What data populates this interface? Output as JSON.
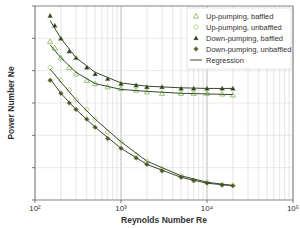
{
  "chart_data": {
    "type": "scatter",
    "x_label": "Reynolds Number Re",
    "y_label": "Power Number Ne",
    "log": "x",
    "grid": true,
    "legend": "top-right",
    "tick_labels": "x",
    "xlim": [
      100,
      100000
    ],
    "ylim": [
      1,
      7
    ],
    "xticks": [
      {
        "value": 100,
        "label": "10²"
      },
      {
        "value": 1000,
        "label": "10³"
      },
      {
        "value": 10000,
        "label": "10⁴"
      },
      {
        "value": 100000,
        "label": "10⁵"
      }
    ],
    "yticks": [
      1,
      2,
      3,
      4,
      5,
      6,
      7
    ],
    "series": [
      {
        "name": "Up-pumping, baffled",
        "color": "#8cbf6a",
        "marker": "triangle-open",
        "x": [
          150,
          170,
          200,
          250,
          300,
          400,
          500,
          700,
          1000,
          1500,
          2000,
          3000,
          5000,
          7000,
          10000,
          15000,
          20000
        ],
        "values": [
          5.9,
          5.7,
          5.4,
          5.1,
          4.9,
          4.7,
          4.6,
          4.5,
          4.45,
          4.4,
          4.35,
          4.3,
          4.3,
          4.3,
          4.3,
          4.28,
          4.25
        ]
      },
      {
        "name": "Up-pumping, unbaffled",
        "color": "#a9cf7e",
        "marker": "diamond-open",
        "x": [
          150,
          200,
          250,
          300,
          400,
          500,
          700,
          1000,
          1500,
          2000,
          3000,
          5000,
          7000,
          10000,
          15000,
          20000
        ],
        "values": [
          5.1,
          4.7,
          4.4,
          4.1,
          3.8,
          3.5,
          3.1,
          2.8,
          2.4,
          2.2,
          1.95,
          1.75,
          1.6,
          1.55,
          1.48,
          1.45
        ]
      },
      {
        "name": "Down-pumping, baffled",
        "color": "#2b3a22",
        "marker": "triangle",
        "x": [
          150,
          170,
          200,
          250,
          300,
          400,
          500,
          700,
          1000,
          1500,
          2000,
          3000,
          5000,
          7000,
          10000,
          15000,
          20000
        ],
        "values": [
          6.7,
          6.4,
          6.0,
          5.6,
          5.4,
          5.1,
          4.9,
          4.75,
          4.6,
          4.55,
          4.5,
          4.5,
          4.45,
          4.45,
          4.45,
          4.45,
          4.45
        ]
      },
      {
        "name": "Down-pumping, unbaffled",
        "color": "#5a6232",
        "marker": "diamond",
        "x": [
          150,
          200,
          250,
          300,
          400,
          500,
          700,
          1000,
          1500,
          2000,
          3000,
          5000,
          7000,
          10000,
          15000,
          20000
        ],
        "values": [
          4.7,
          4.3,
          4.0,
          3.8,
          3.5,
          3.25,
          2.9,
          2.6,
          2.3,
          2.1,
          1.9,
          1.7,
          1.6,
          1.52,
          1.46,
          1.44
        ]
      },
      {
        "name": "Regression",
        "color": "#3b4a2c",
        "type": "line",
        "line_style": "solid",
        "x": [
          150,
          200,
          300,
          500,
          1000,
          2000,
          5000,
          10000,
          20000,
          null,
          150,
          200,
          300,
          500,
          1000,
          2000,
          5000,
          10000,
          20000,
          null,
          150,
          200,
          300,
          500,
          1000,
          2000,
          5000,
          10000,
          20000,
          null,
          150,
          200,
          300,
          500,
          1000,
          2000,
          5000,
          10000,
          20000
        ],
        "values": [
          5.8,
          5.4,
          4.95,
          4.6,
          4.42,
          4.36,
          4.3,
          4.28,
          4.26,
          null,
          6.55,
          6.0,
          5.4,
          4.95,
          4.62,
          4.52,
          4.47,
          4.45,
          4.45,
          null,
          5.05,
          4.65,
          4.1,
          3.5,
          2.8,
          2.2,
          1.75,
          1.55,
          1.45,
          null,
          4.75,
          4.3,
          3.8,
          3.25,
          2.6,
          2.1,
          1.7,
          1.52,
          1.44
        ]
      }
    ]
  }
}
